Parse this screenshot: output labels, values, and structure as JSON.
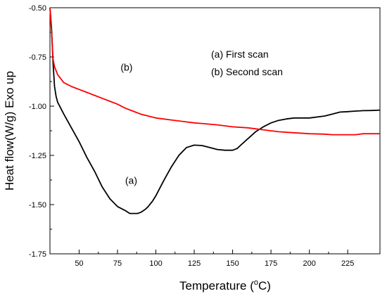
{
  "chart_data": {
    "type": "line",
    "title": "",
    "xlabel": "Temperature (",
    "xlabel_sup": "o",
    "xlabel_end": "C)",
    "ylabel": "Heat flow(W/g) Exo up",
    "xlim": [
      31,
      246
    ],
    "ylim": [
      -1.75,
      -0.5
    ],
    "xticks": [
      50,
      75,
      100,
      125,
      150,
      175,
      200,
      225
    ],
    "xtick_labels": [
      "50",
      "75",
      "100",
      "125",
      "150",
      "175",
      "200",
      "225"
    ],
    "yticks": [
      -0.5,
      -0.75,
      -1.0,
      -1.25,
      -1.5,
      -1.75
    ],
    "ytick_labels": [
      "-0.50",
      "-0.75",
      "-1.00",
      "-1.25",
      "-1.50",
      "-1.75"
    ],
    "grid": false,
    "legend": {
      "placement": "top-right",
      "entries": [
        "(a) First scan",
        "(b) Second scan"
      ]
    },
    "annotations": [
      {
        "text": "(a)",
        "x": 80,
        "y": -1.395
      },
      {
        "text": "(b)",
        "x": 77,
        "y": -0.82
      }
    ],
    "series": [
      {
        "name": "(a)",
        "color": "#000000",
        "x": [
          31,
          32,
          33,
          34,
          35,
          36,
          38,
          40,
          45,
          50,
          55,
          60,
          65,
          70,
          75,
          80,
          83,
          85,
          88,
          90,
          93,
          95,
          98,
          100,
          105,
          110,
          115,
          120,
          125,
          130,
          135,
          140,
          145,
          150,
          153,
          155,
          160,
          165,
          170,
          175,
          180,
          185,
          190,
          195,
          200,
          210,
          215,
          220,
          225,
          230,
          235,
          240,
          246
        ],
        "y": [
          -0.5,
          -0.6,
          -0.78,
          -0.9,
          -0.95,
          -0.98,
          -1.01,
          -1.04,
          -1.11,
          -1.18,
          -1.26,
          -1.33,
          -1.41,
          -1.47,
          -1.51,
          -1.53,
          -1.545,
          -1.545,
          -1.545,
          -1.54,
          -1.525,
          -1.51,
          -1.48,
          -1.455,
          -1.38,
          -1.31,
          -1.25,
          -1.21,
          -1.198,
          -1.2,
          -1.21,
          -1.22,
          -1.224,
          -1.224,
          -1.215,
          -1.2,
          -1.165,
          -1.13,
          -1.105,
          -1.085,
          -1.072,
          -1.065,
          -1.06,
          -1.06,
          -1.06,
          -1.05,
          -1.04,
          -1.03,
          -1.028,
          -1.025,
          -1.023,
          -1.022,
          -1.02
        ]
      },
      {
        "name": "(b)",
        "color": "#ff0000",
        "x": [
          31,
          32,
          33,
          34,
          35,
          36,
          38,
          40,
          45,
          50,
          55,
          60,
          65,
          70,
          75,
          80,
          85,
          90,
          95,
          100,
          110,
          120,
          125,
          130,
          140,
          150,
          160,
          170,
          180,
          190,
          200,
          210,
          215,
          220,
          225,
          230,
          235,
          240,
          246
        ],
        "y": [
          -0.5,
          -0.62,
          -0.76,
          -0.8,
          -0.82,
          -0.84,
          -0.86,
          -0.88,
          -0.9,
          -0.915,
          -0.93,
          -0.945,
          -0.96,
          -0.975,
          -0.99,
          -1.01,
          -1.025,
          -1.04,
          -1.05,
          -1.06,
          -1.07,
          -1.08,
          -1.085,
          -1.088,
          -1.095,
          -1.105,
          -1.11,
          -1.12,
          -1.13,
          -1.135,
          -1.14,
          -1.142,
          -1.145,
          -1.145,
          -1.145,
          -1.145,
          -1.14,
          -1.14,
          -1.14
        ]
      }
    ]
  }
}
